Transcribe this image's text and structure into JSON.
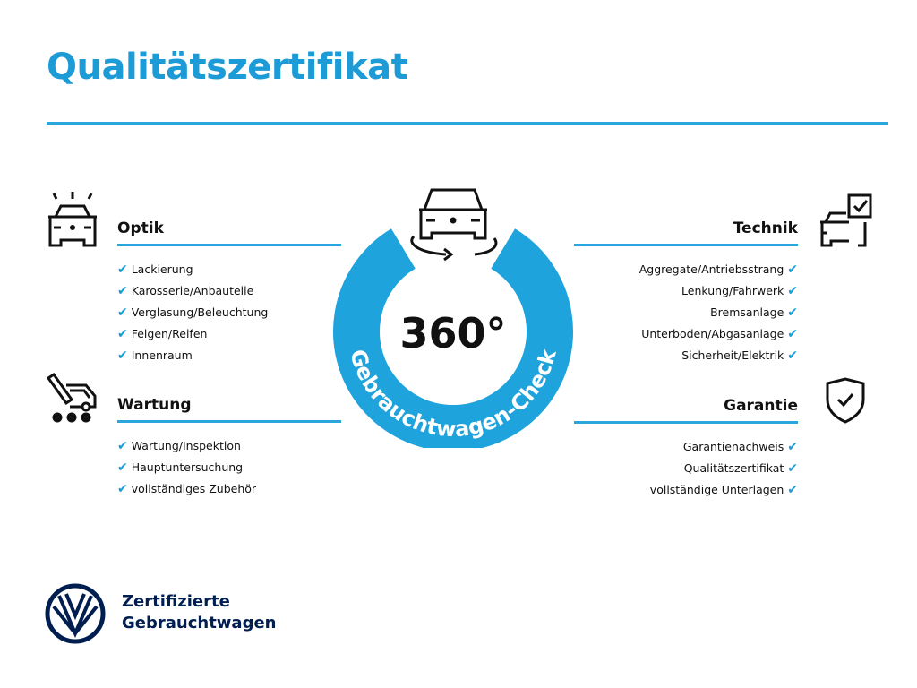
{
  "title": "Qualitätszertifikat",
  "accent": "#1c9bd7",
  "center": {
    "degrees": "360°",
    "ring_text": "Gebrauchtwagen-Check"
  },
  "sections": {
    "optik": {
      "title": "Optik",
      "icon": "car-lights-icon",
      "items": [
        "Lackierung",
        "Karosserie/Anbauteile",
        "Verglasung/Beleuchtung",
        "Felgen/Reifen",
        "Innenraum"
      ]
    },
    "wartung": {
      "title": "Wartung",
      "icon": "service-van-tool-icon",
      "items": [
        "Wartung/Inspektion",
        "Hauptuntersuchung",
        "vollständiges Zubehör"
      ]
    },
    "technik": {
      "title": "Technik",
      "icon": "car-checkbox-icon",
      "items": [
        "Aggregate/Antriebsstrang",
        "Lenkung/Fahrwerk",
        "Bremsanlage",
        "Unterboden/Abgasanlage",
        "Sicherheit/Elektrik"
      ]
    },
    "garantie": {
      "title": "Garantie",
      "icon": "shield-check-icon",
      "items": [
        "Garantienachweis",
        "Qualitätszertifikat",
        "vollständige Unterlagen"
      ]
    }
  },
  "check": "✔",
  "brand": {
    "line1": "Zertifizierte",
    "line2": "Gebrauchtwagen"
  }
}
